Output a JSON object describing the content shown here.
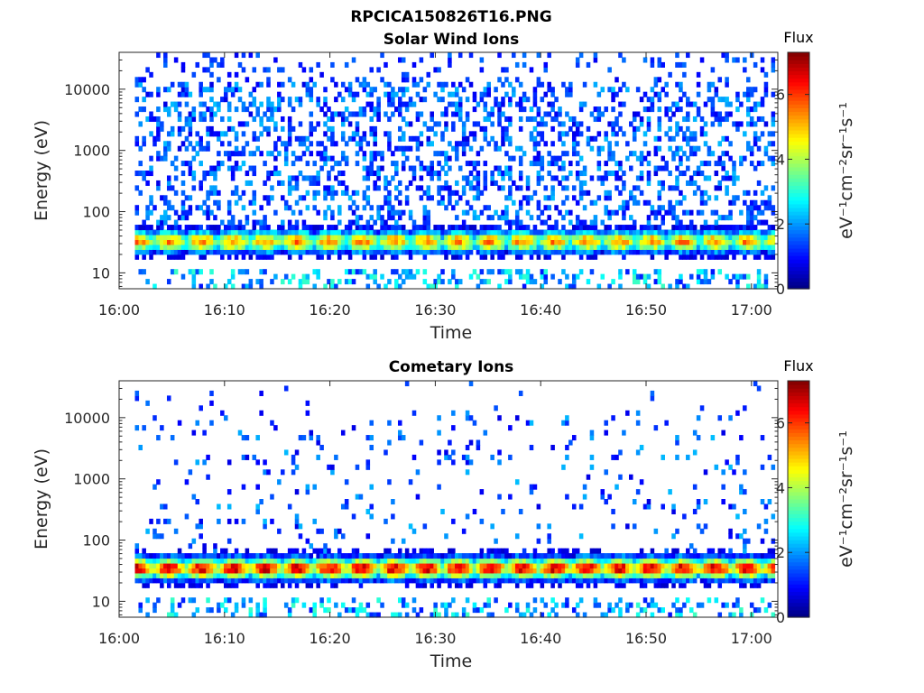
{
  "figure_title": "RPCICA150826T16.PNG",
  "colors": {
    "colormap": [
      "#00007F",
      "#0000FF",
      "#007FFF",
      "#00FFFF",
      "#7FFF7F",
      "#FFFF00",
      "#FF7F00",
      "#FF0000",
      "#7F0000"
    ],
    "axes": "#262626",
    "background": "#FFFFFF"
  },
  "chart_data": [
    {
      "type": "heatmap",
      "title": "Solar Wind Ions",
      "xlabel": "Time",
      "ylabel": "Energy (eV)",
      "x_ticks": [
        "16:00",
        "16:10",
        "16:20",
        "16:30",
        "16:40",
        "16:50",
        "17:00"
      ],
      "x_range_minutes": [
        0,
        62.5
      ],
      "data_start_minute": 1.5,
      "y_scale": "log",
      "y_ticks": [
        "10",
        "100",
        "1000",
        "10000"
      ],
      "y_range": [
        5.5,
        40000
      ],
      "colorbar": {
        "title": "Flux",
        "label": "eV⁻¹cm⁻²sr⁻¹s⁻¹",
        "range": [
          0,
          7.3
        ],
        "ticks": [
          "0",
          "2",
          "4",
          "6"
        ]
      },
      "peak_energy_eV": 33,
      "peak_flux": 5.5,
      "high_energy_noise": "dense"
    },
    {
      "type": "heatmap",
      "title": "Cometary Ions",
      "xlabel": "Time",
      "ylabel": "Energy (eV)",
      "x_ticks": [
        "16:00",
        "16:10",
        "16:20",
        "16:30",
        "16:40",
        "16:50",
        "17:00"
      ],
      "x_range_minutes": [
        0,
        62.5
      ],
      "data_start_minute": 1.5,
      "y_scale": "log",
      "y_ticks": [
        "10",
        "100",
        "1000",
        "10000"
      ],
      "y_range": [
        5.5,
        40000
      ],
      "colorbar": {
        "title": "Flux",
        "label": "eV⁻¹cm⁻²sr⁻¹s⁻¹",
        "range": [
          0,
          7.3
        ],
        "ticks": [
          "0",
          "2",
          "4",
          "6"
        ]
      },
      "peak_energy_eV": 35,
      "peak_flux": 6.8,
      "high_energy_noise": "sparse"
    }
  ]
}
